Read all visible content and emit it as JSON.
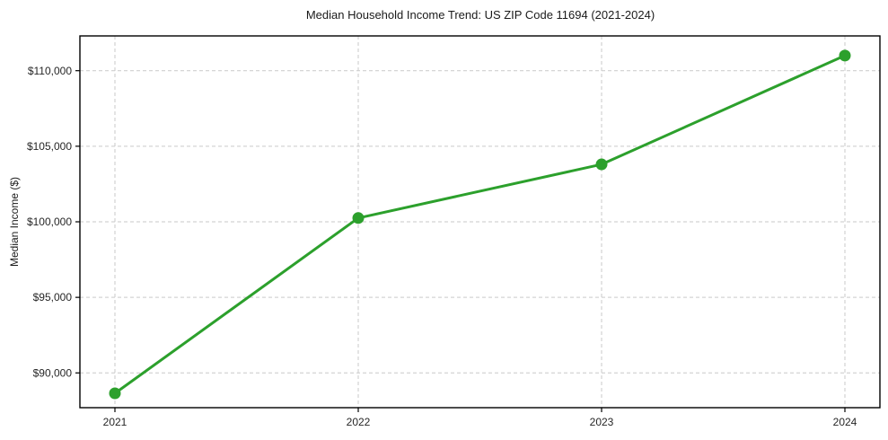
{
  "title": "Median Household Income Trend: US ZIP Code 11694 (2021-2024)",
  "ylabel": "Median Income ($)",
  "colors": {
    "line": "#2ca02c",
    "marker": "#2ca02c",
    "grid": "#c9c9c9",
    "spine": "#000000",
    "text": "#262626",
    "background": "#ffffff"
  },
  "chart_data": {
    "type": "line",
    "title": "Median Household Income Trend: US ZIP Code 11694 (2021-2024)",
    "xlabel": "",
    "ylabel": "Median Income ($)",
    "x": [
      2021,
      2022,
      2023,
      2024
    ],
    "x_tick_labels": [
      "2021",
      "2022",
      "2023",
      "2024"
    ],
    "series": [
      {
        "name": "Median household income",
        "values": [
          88650,
          100250,
          103800,
          111000
        ],
        "color": "#2ca02c",
        "marker": "circle",
        "line_style": "solid"
      }
    ],
    "y_ticks": [
      90000,
      95000,
      100000,
      105000,
      110000
    ],
    "y_tick_labels": [
      "$90,000",
      "$95,000",
      "$100,000",
      "$105,000",
      "$110,000"
    ],
    "ylim": [
      87700,
      112300
    ],
    "grid": "both-dashed",
    "legend": "none"
  }
}
